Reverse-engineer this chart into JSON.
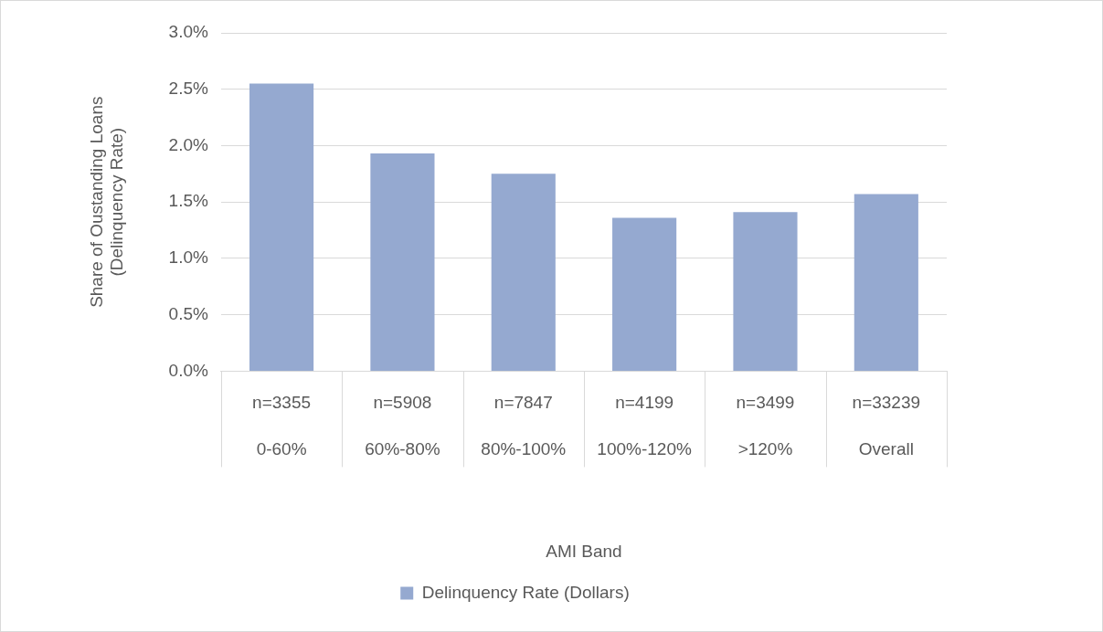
{
  "chart_data": {
    "type": "bar",
    "xlabel": "AMI Band",
    "ylabel": "Share of Oustanding Loans\n(Delinquency Rate)",
    "categories": [
      "0-60%",
      "60%-80%",
      "80%-100%",
      "100%-120%",
      ">120%",
      "Overall"
    ],
    "series": [
      {
        "name": "Delinquency Rate (Dollars)",
        "color": "#95a9d0",
        "values": [
          2.55,
          1.93,
          1.75,
          1.36,
          1.41,
          1.57
        ]
      }
    ],
    "ylim": [
      0,
      3
    ],
    "yticks": [
      {
        "value": 0,
        "label": "0.0%"
      },
      {
        "value": 0.5,
        "label": "0.5%"
      },
      {
        "value": 1,
        "label": "1.0%"
      },
      {
        "value": 1.5,
        "label": "1.5%"
      },
      {
        "value": 2,
        "label": "2.0%"
      },
      {
        "value": 2.5,
        "label": "2.5%"
      },
      {
        "value": 3,
        "label": "3.0%"
      }
    ],
    "annotations": [
      "n=3355",
      "n=5908",
      "n=7847",
      "n=4199",
      "n=3499",
      "n=33239"
    ],
    "grid": "y",
    "legend": "bottom"
  }
}
